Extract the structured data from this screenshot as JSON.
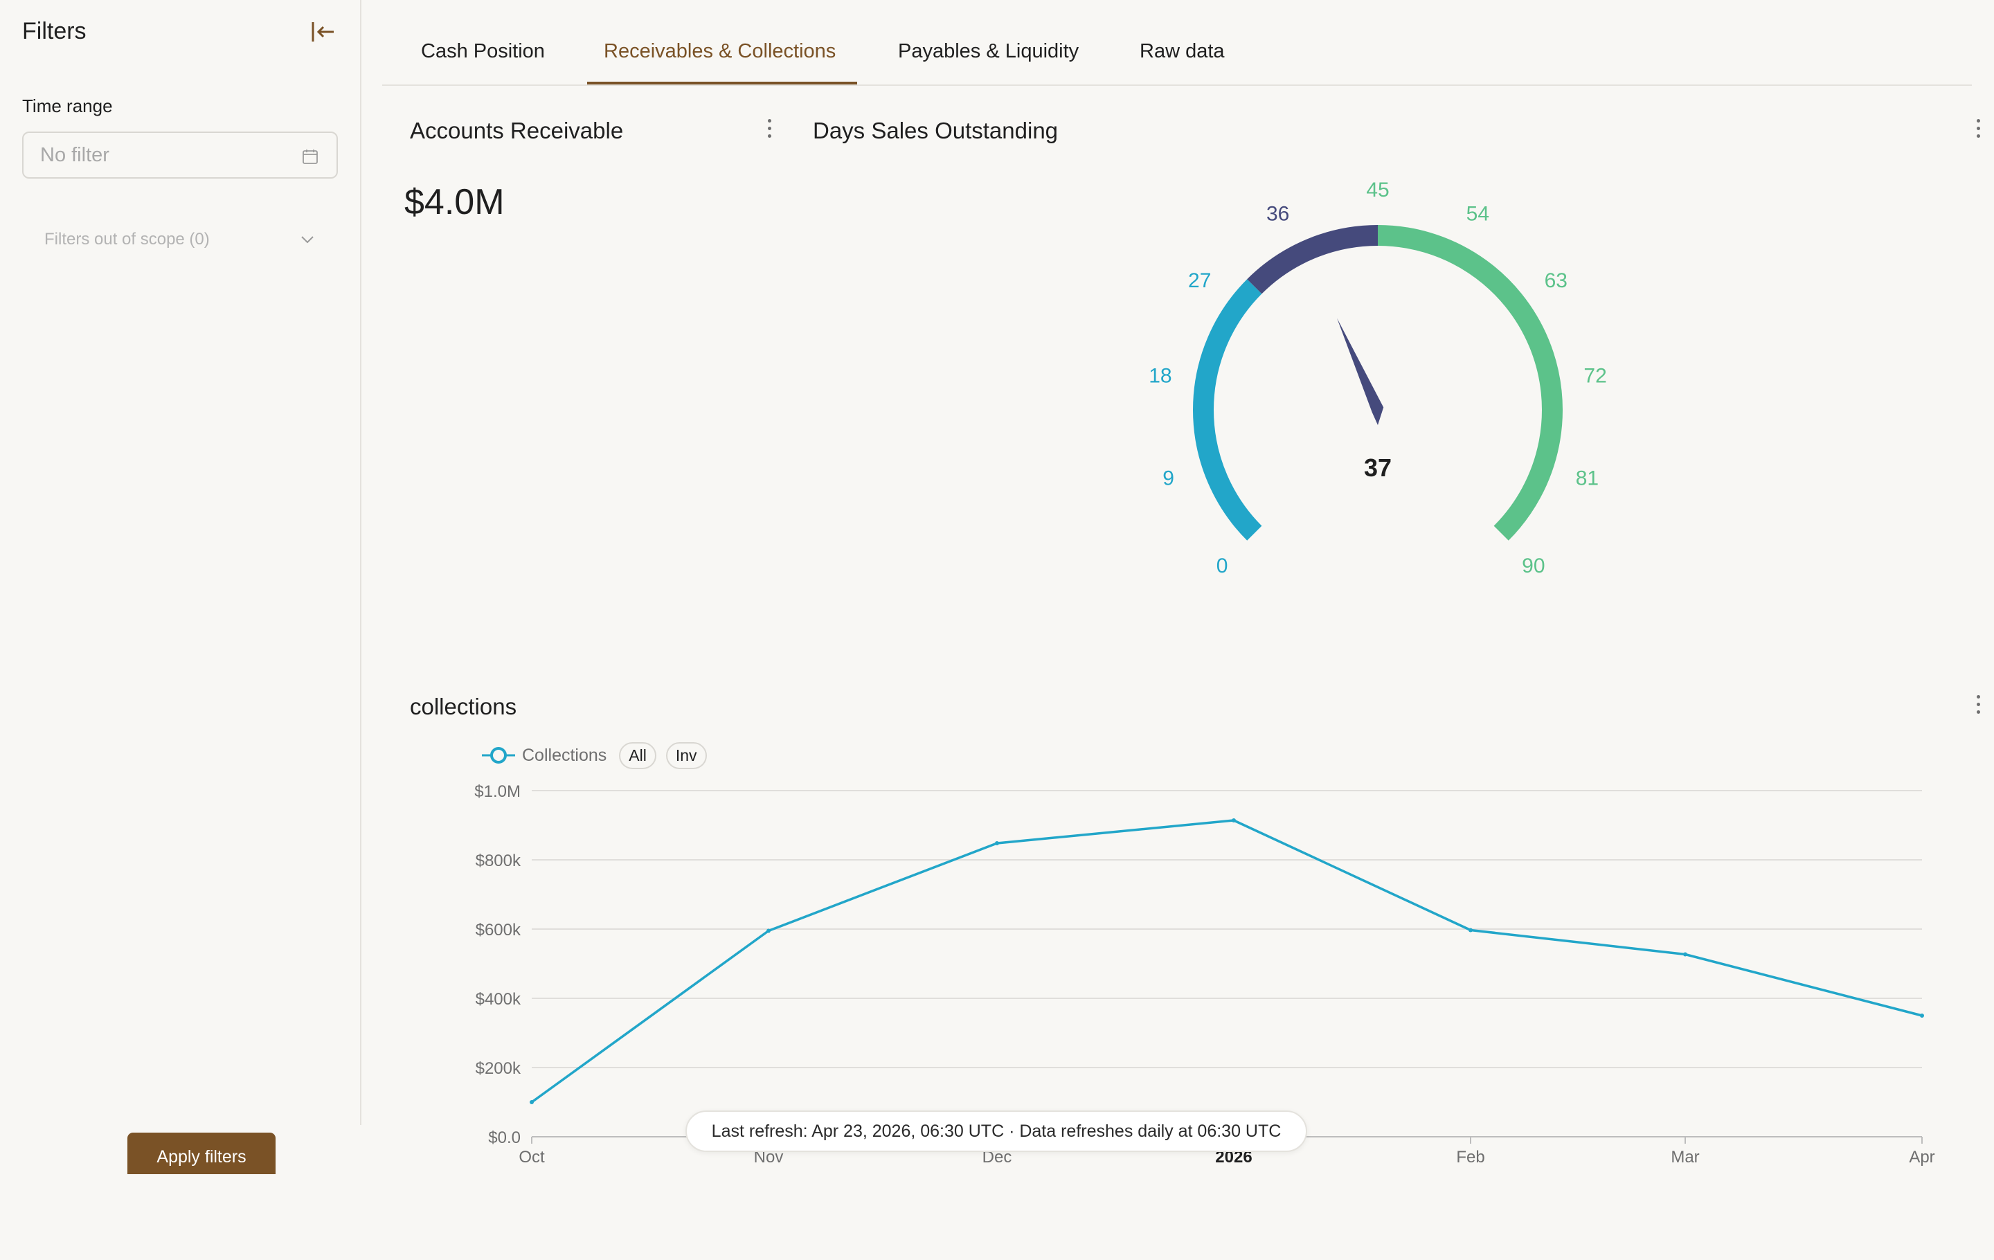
{
  "sidebar": {
    "title": "Filters",
    "time_range_label": "Time range",
    "time_range_placeholder": "No filter",
    "scope_label": "Filters out of scope (0)",
    "apply_label": "Apply filters"
  },
  "tabs": [
    {
      "label": "Cash Position",
      "active": false
    },
    {
      "label": "Receivables & Collections",
      "active": true
    },
    {
      "label": "Payables & Liquidity",
      "active": false
    },
    {
      "label": "Raw data",
      "active": false
    }
  ],
  "colors": {
    "accent": "#7a5226",
    "gauge_low": "#22a6c9",
    "gauge_mid": "#454a7c",
    "gauge_high": "#5cc28a",
    "series": "#22a6c9"
  },
  "ar_card": {
    "title": "Accounts Receivable",
    "value": "$4.0M"
  },
  "dso_card": {
    "title": "Days Sales Outstanding",
    "value": "37",
    "min": 0,
    "max": 90,
    "ticks": [
      "0",
      "9",
      "18",
      "27",
      "36",
      "45",
      "54",
      "63",
      "72",
      "81",
      "90"
    ],
    "bands": [
      {
        "from": 0,
        "to": 30,
        "color": "#22a6c9"
      },
      {
        "from": 30,
        "to": 45,
        "color": "#454a7c"
      },
      {
        "from": 45,
        "to": 90,
        "color": "#5cc28a"
      }
    ],
    "needle_value": 37
  },
  "collections_card": {
    "title": "collections",
    "legend_label": "Collections",
    "legend_pills": [
      "All",
      "Inv"
    ]
  },
  "chart_data": {
    "type": "line",
    "title": "collections",
    "x": [
      "Oct",
      "Nov",
      "Dec",
      "2026",
      "Feb",
      "Mar",
      "Apr"
    ],
    "series": [
      {
        "name": "Collections",
        "values": [
          100000,
          595000,
          848000,
          914000,
          597000,
          527000,
          350000
        ]
      }
    ],
    "yticks": [
      "$0.0",
      "$200k",
      "$400k",
      "$600k",
      "$800k",
      "$1.0M"
    ],
    "ylim": [
      0,
      1000000
    ],
    "grid": true,
    "legend": "top-left"
  },
  "footer": {
    "refresh_text": "Last refresh: Apr 23, 2026, 06:30 UTC · Data refreshes daily at 06:30 UTC"
  }
}
